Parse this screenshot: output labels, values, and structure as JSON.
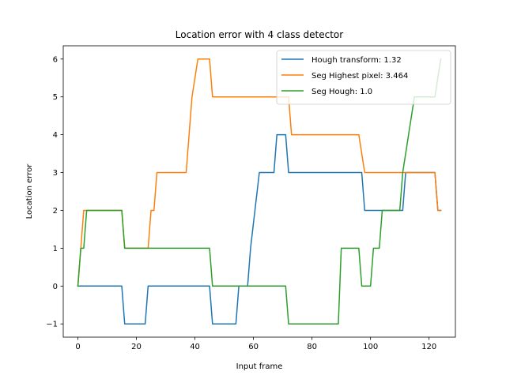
{
  "chart_data": {
    "type": "line",
    "title": "Location error with 4 class detector",
    "xlabel": "Input frame",
    "ylabel": "Location error",
    "xlim": [
      -5,
      129
    ],
    "ylim": [
      -1.35,
      6.35
    ],
    "xticks": [
      0,
      20,
      40,
      60,
      80,
      100,
      120
    ],
    "yticks": [
      -1,
      0,
      1,
      2,
      3,
      4,
      5,
      6
    ],
    "xtick_labels": [
      "0",
      "20",
      "40",
      "60",
      "80",
      "100",
      "120"
    ],
    "ytick_labels": [
      "−1",
      "0",
      "1",
      "2",
      "3",
      "4",
      "5",
      "6"
    ],
    "grid": false,
    "legend_position": "top-right",
    "series": [
      {
        "name": "Hough transform: 1.32",
        "color": "#1f77b4",
        "x": [
          0,
          15,
          16,
          23,
          24,
          45,
          46,
          54,
          55,
          58,
          59,
          62,
          67,
          68,
          71,
          72,
          97,
          98,
          104,
          105,
          111,
          112,
          122,
          123,
          124
        ],
        "y": [
          0,
          0,
          -1,
          -1,
          0,
          0,
          -1,
          -1,
          0,
          0,
          1,
          3,
          3,
          4,
          4,
          3,
          3,
          2,
          2,
          2,
          2,
          3,
          3,
          2,
          2
        ]
      },
      {
        "name": "Seg Highest pixel: 3.464",
        "color": "#ff7f0e",
        "x": [
          0,
          2,
          15,
          16,
          24,
          25,
          26,
          27,
          37,
          38,
          39,
          41,
          45,
          46,
          72,
          73,
          96,
          98,
          122,
          123,
          124
        ],
        "y": [
          0,
          2,
          2,
          1,
          1,
          2,
          2,
          3,
          3,
          4,
          5,
          6,
          6,
          5,
          5,
          4,
          4,
          3,
          3,
          2,
          2
        ]
      },
      {
        "name": "Seg Hough: 1.0",
        "color": "#2ca02c",
        "x": [
          0,
          1,
          2,
          3,
          15,
          16,
          45,
          46,
          71,
          72,
          89,
          90,
          96,
          97,
          100,
          101,
          102,
          103,
          104,
          105,
          110,
          111,
          115,
          122,
          124
        ],
        "y": [
          0,
          1,
          1,
          2,
          2,
          1,
          1,
          0,
          0,
          -1,
          -1,
          1,
          1,
          0,
          0,
          1,
          1,
          1,
          2,
          2,
          2,
          3,
          5,
          5,
          6
        ]
      }
    ]
  }
}
